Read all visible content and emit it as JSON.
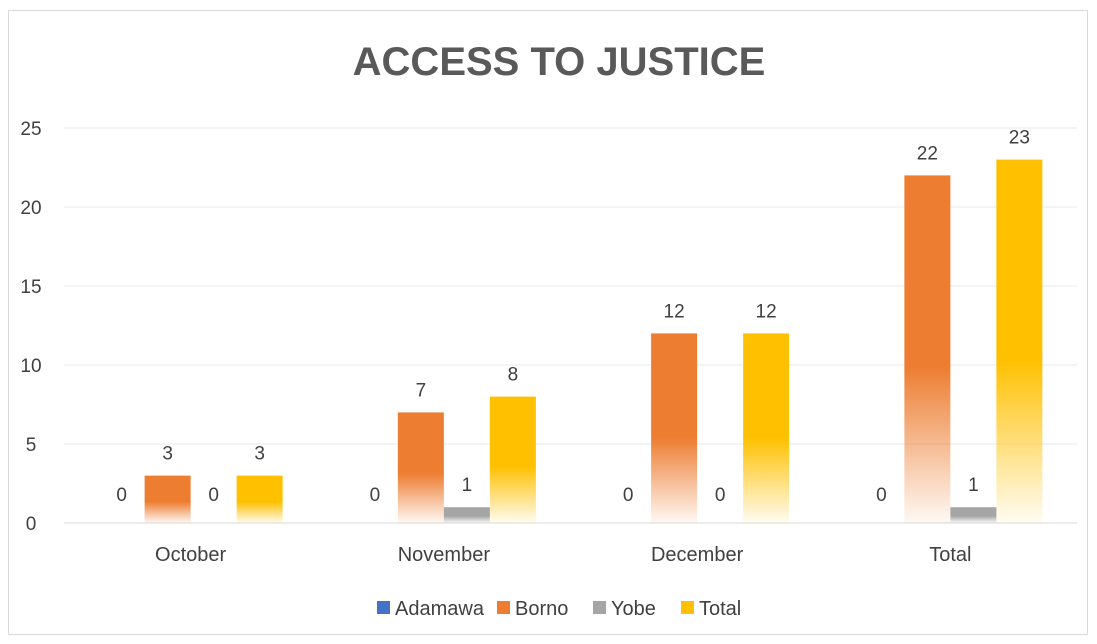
{
  "chart_data": {
    "type": "bar",
    "title": "ACCESS TO JUSTICE",
    "xlabel": "",
    "ylabel": "",
    "categories": [
      "October",
      "November",
      "December",
      "Total"
    ],
    "ylim": [
      0,
      25
    ],
    "yticks": [
      0,
      5,
      10,
      15,
      20,
      25
    ],
    "grid": true,
    "legend_position": "bottom",
    "series": [
      {
        "name": "Adamawa",
        "color": "#4472c4",
        "values": [
          0,
          0,
          0,
          0
        ],
        "labels": [
          "0",
          "0",
          "0",
          "0"
        ]
      },
      {
        "name": "Borno",
        "color": "#ed7d31",
        "values": [
          3,
          7,
          12,
          22
        ],
        "labels": [
          "3",
          "7",
          "12",
          "22"
        ]
      },
      {
        "name": "Yobe",
        "color": "#a5a5a5",
        "values": [
          0,
          1,
          0,
          1
        ],
        "labels": [
          "0",
          "1",
          "0",
          "1"
        ]
      },
      {
        "name": "Total",
        "color": "#ffc000",
        "values": [
          3,
          8,
          12,
          23
        ],
        "labels": [
          "3",
          "8",
          "12",
          "23"
        ]
      }
    ]
  }
}
